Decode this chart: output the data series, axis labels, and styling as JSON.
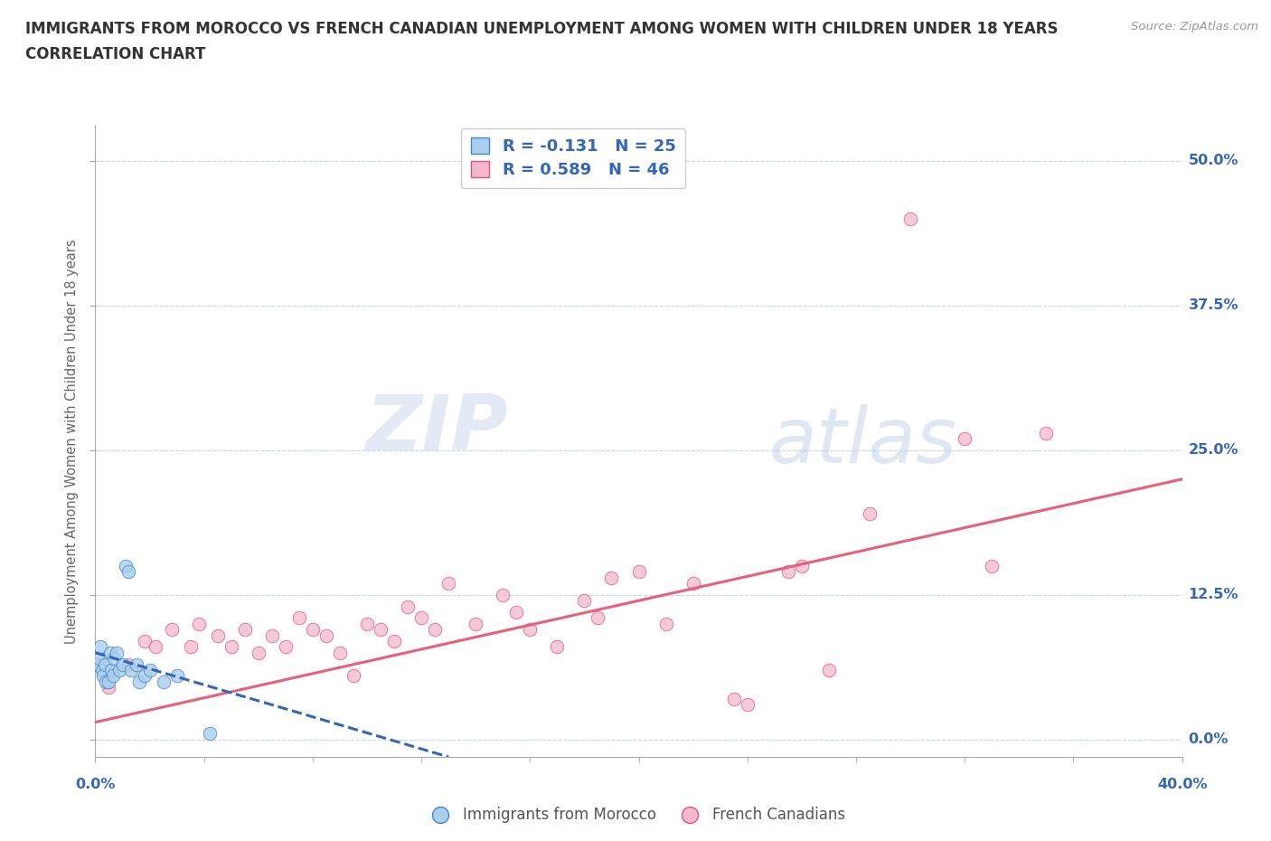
{
  "title_line1": "IMMIGRANTS FROM MOROCCO VS FRENCH CANADIAN UNEMPLOYMENT AMONG WOMEN WITH CHILDREN UNDER 18 YEARS",
  "title_line2": "CORRELATION CHART",
  "source_text": "Source: ZipAtlas.com",
  "ylabel": "Unemployment Among Women with Children Under 18 years",
  "ytick_values": [
    0.0,
    12.5,
    25.0,
    37.5,
    50.0
  ],
  "xlim": [
    0.0,
    40.0
  ],
  "ylim": [
    -1.5,
    53.0
  ],
  "watermark_zip": "ZIP",
  "watermark_atlas": "atlas",
  "legend1_label": "Immigrants from Morocco",
  "legend2_label": "French Canadians",
  "R1": -0.131,
  "N1": 25,
  "R2": 0.589,
  "N2": 46,
  "color_blue": "#aacfee",
  "color_pink": "#f4b8cc",
  "color_blue_line": "#3366bb",
  "color_pink_line": "#e8607a",
  "color_blue_edge": "#4488cc",
  "color_pink_edge": "#dd5577",
  "color_axis_labels": "#3366bb",
  "background_color": "#ffffff",
  "grid_color": "#c8d8e8",
  "title_color": "#333333",
  "source_color": "#999999",
  "ylabel_color": "#666666",
  "blue_scatter_x": [
    0.1,
    0.15,
    0.2,
    0.25,
    0.3,
    0.35,
    0.4,
    0.5,
    0.55,
    0.6,
    0.65,
    0.7,
    0.8,
    0.9,
    1.0,
    1.1,
    1.2,
    1.3,
    1.5,
    1.6,
    1.8,
    2.0,
    2.5,
    3.0,
    4.2
  ],
  "blue_scatter_y": [
    6.5,
    7.0,
    8.0,
    6.0,
    5.5,
    6.5,
    5.0,
    5.0,
    7.5,
    6.0,
    5.5,
    7.0,
    7.5,
    6.0,
    6.5,
    15.0,
    14.5,
    6.0,
    6.5,
    5.0,
    5.5,
    6.0,
    5.0,
    5.5,
    0.5
  ],
  "pink_scatter_x": [
    0.5,
    1.2,
    1.8,
    2.2,
    2.8,
    3.5,
    3.8,
    4.5,
    5.0,
    5.5,
    6.0,
    6.5,
    7.0,
    7.5,
    8.0,
    8.5,
    9.0,
    9.5,
    10.0,
    10.5,
    11.0,
    11.5,
    12.0,
    12.5,
    13.0,
    14.0,
    15.0,
    15.5,
    16.0,
    17.0,
    18.0,
    18.5,
    19.0,
    20.0,
    21.0,
    22.0,
    23.5,
    24.0,
    25.5,
    26.0,
    27.0,
    28.5,
    30.0,
    32.0,
    33.0,
    35.0
  ],
  "pink_scatter_y": [
    4.5,
    6.5,
    8.5,
    8.0,
    9.5,
    8.0,
    10.0,
    9.0,
    8.0,
    9.5,
    7.5,
    9.0,
    8.0,
    10.5,
    9.5,
    9.0,
    7.5,
    5.5,
    10.0,
    9.5,
    8.5,
    11.5,
    10.5,
    9.5,
    13.5,
    10.0,
    12.5,
    11.0,
    9.5,
    8.0,
    12.0,
    10.5,
    14.0,
    14.5,
    10.0,
    13.5,
    3.5,
    3.0,
    14.5,
    15.0,
    6.0,
    19.5,
    45.0,
    26.0,
    15.0,
    26.5
  ],
  "pink_line_x0": 0.0,
  "pink_line_y0": 1.5,
  "pink_line_x1": 40.0,
  "pink_line_y1": 22.5,
  "blue_line_x0": 0.0,
  "blue_line_y0": 7.5,
  "blue_line_x1": 13.0,
  "blue_line_y1": -1.5
}
